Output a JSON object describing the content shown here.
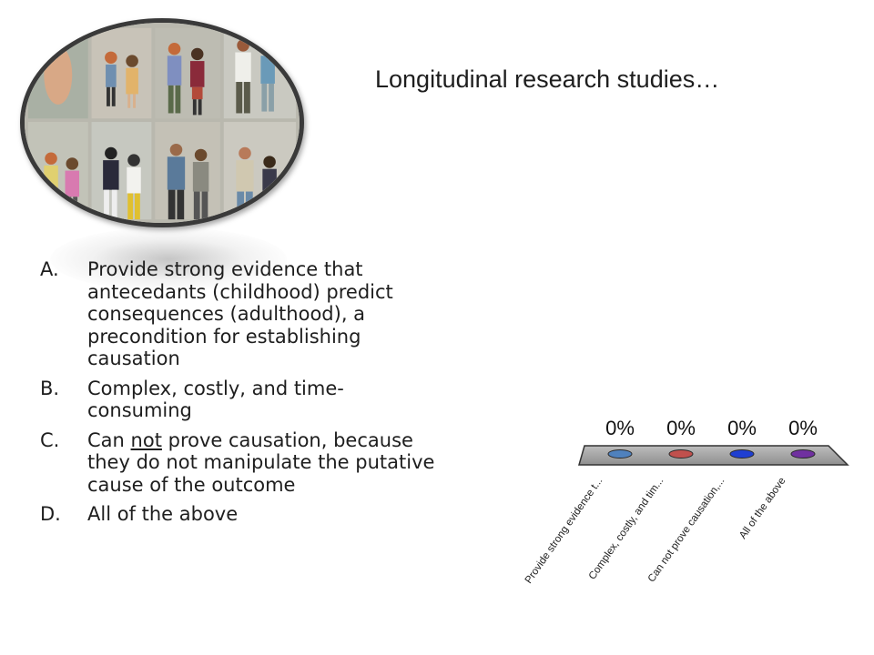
{
  "title": "Longitudinal research studies…",
  "options": [
    {
      "letter": "A.",
      "text": "Provide strong evidence that antecedants (childhood) predict consequences  (adulthood), a precondition for establishing causation"
    },
    {
      "letter": "B.",
      "text": "Complex, costly, and time-consuming"
    },
    {
      "letter": "C.",
      "pre": "Can ",
      "underline": "not",
      "post": " prove causation, because they do not manipulate the putative cause of the outcome"
    },
    {
      "letter": "D.",
      "text": "All of the above"
    }
  ],
  "chart_data": {
    "type": "bar",
    "categories": [
      "Provide strong evidence t...",
      "Complex, costly, and tim...",
      "Can not prove causation,...",
      "All of the above"
    ],
    "values": [
      0,
      0,
      0,
      0
    ],
    "value_labels": [
      "0%",
      "0%",
      "0%",
      "0%"
    ],
    "colors": [
      "#4f81bd",
      "#c0504d",
      "#1f3fd1",
      "#7030a0"
    ],
    "ylim": [
      0,
      100
    ],
    "legend": "none",
    "grid": false
  },
  "photo": {
    "icon": "family-growth-photo-icon"
  }
}
